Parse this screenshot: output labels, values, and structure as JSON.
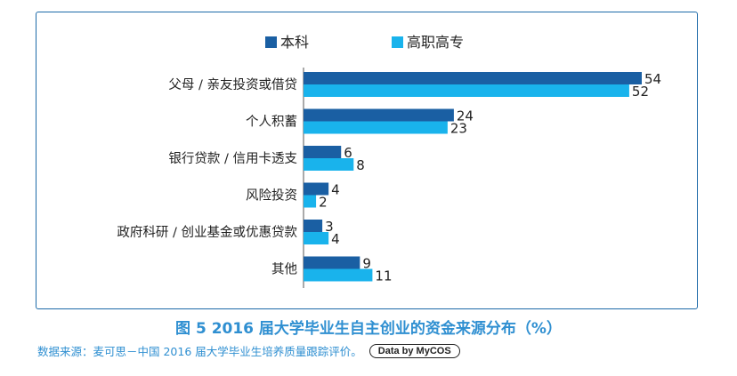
{
  "chart_data": {
    "type": "bar",
    "orientation": "horizontal",
    "categories": [
      "父母 / 亲友投资或借贷",
      "个人积蓄",
      "银行贷款 / 信用卡透支",
      "风险投资",
      "政府科研 / 创业基金或优惠贷款",
      "其他"
    ],
    "series": [
      {
        "name": "本科",
        "values": [
          54,
          24,
          6,
          4,
          3,
          9
        ],
        "color": "#1a5fa3"
      },
      {
        "name": "高职高专",
        "values": [
          52,
          23,
          8,
          2,
          4,
          11
        ],
        "color": "#19b3ec"
      }
    ],
    "title": "图 5  2016 届大学毕业生自主创业的资金来源分布（%）",
    "xlabel": "",
    "ylabel": "",
    "xlim": [
      0,
      54
    ],
    "grid": false,
    "legend": "top-center"
  },
  "source": {
    "text": "数据来源：麦可思－中国 2016 届大学毕业生培养质量跟踪评价。",
    "logo": "Data by MyCOS"
  }
}
